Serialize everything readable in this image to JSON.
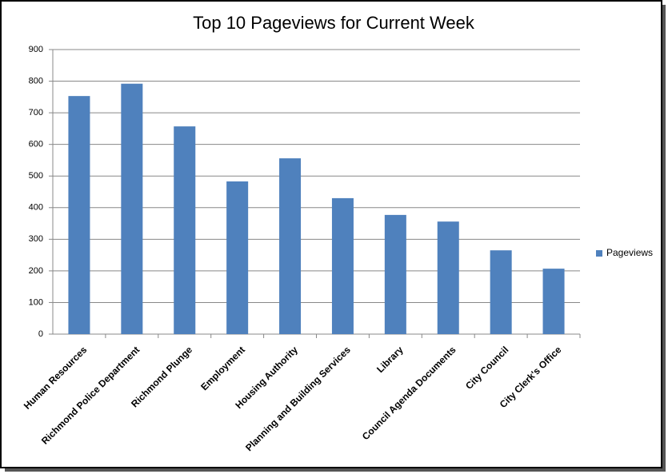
{
  "chart_data": {
    "type": "bar",
    "title": "Top 10 Pageviews for Current Week",
    "categories": [
      "Human Resources",
      "Richmond Police Department",
      "Richmond Plunge",
      "Employment",
      "Housing Authority",
      "Planning and Building Services",
      "Library",
      "Council Agenda Documents",
      "City Council",
      "City Clerk's Office"
    ],
    "series": [
      {
        "name": "Pageviews",
        "color": "#4f81bd",
        "values": [
          753,
          792,
          657,
          483,
          556,
          430,
          377,
          356,
          265,
          207
        ]
      }
    ],
    "ylim": [
      0,
      900
    ],
    "yticks": [
      0,
      100,
      200,
      300,
      400,
      500,
      600,
      700,
      800,
      900
    ],
    "grid": true,
    "legend": "right"
  }
}
